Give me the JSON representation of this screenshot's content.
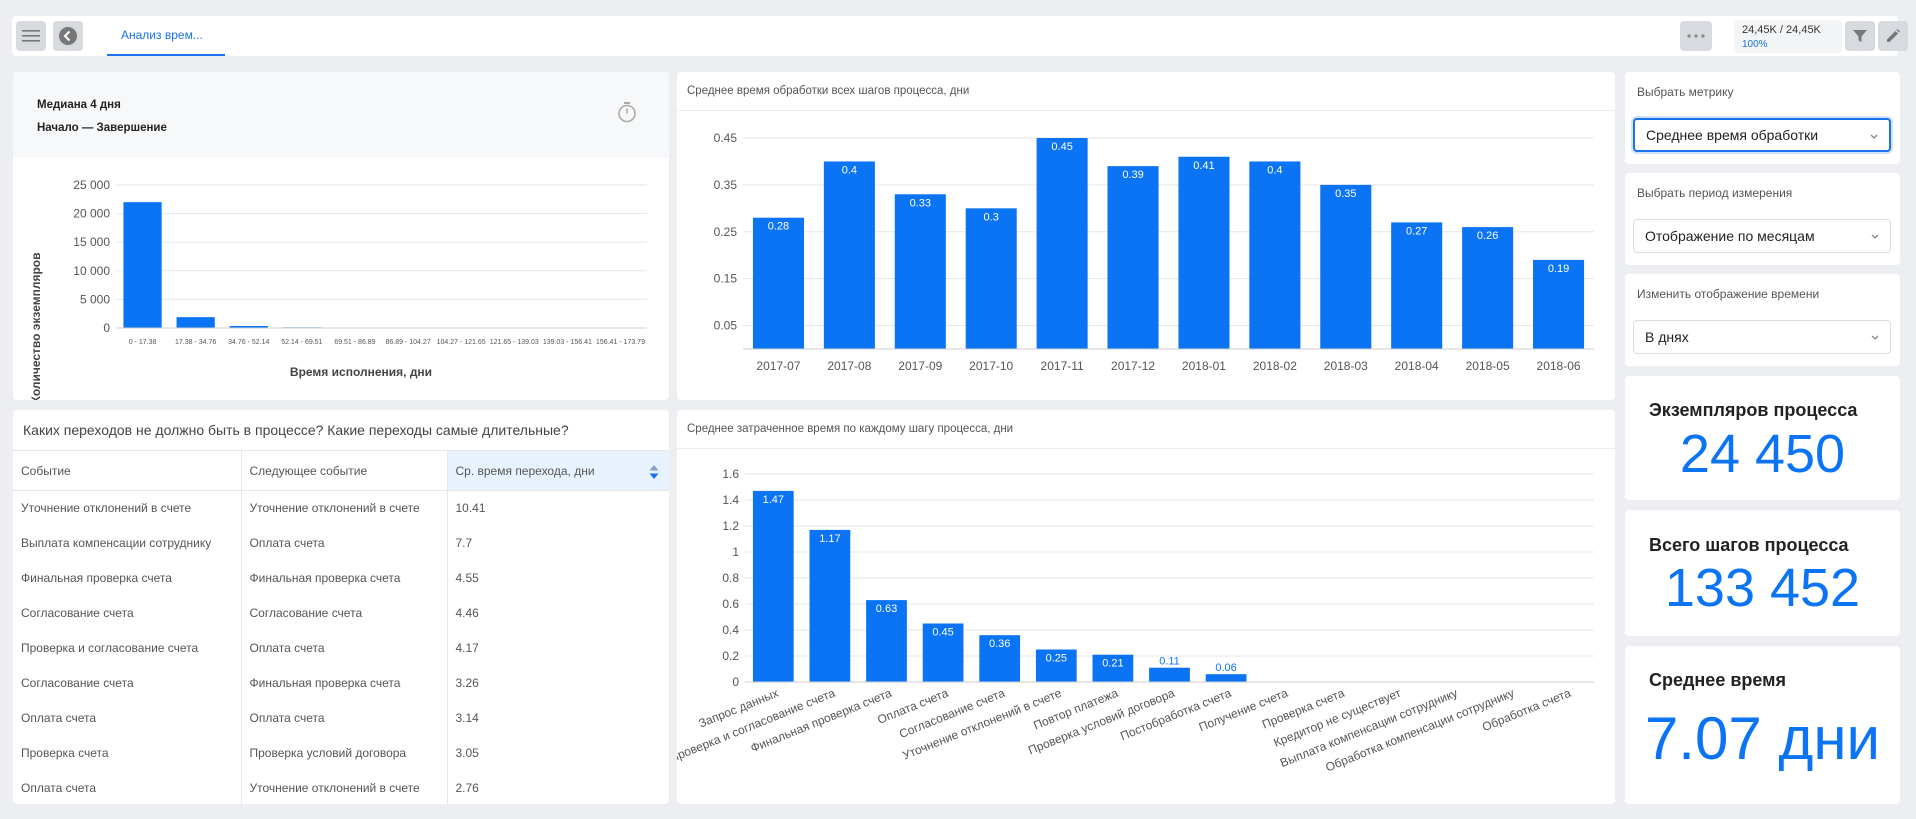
{
  "topbar": {
    "tab_label": "Анализ врем...",
    "capacity_value": "24,45K / 24,45K",
    "capacity_percent": "100%"
  },
  "histogram": {
    "median": "Медиана 4 дня",
    "subtitle": "Начало — Завершение",
    "ylabel": "Количество экземпляров",
    "xlabel": "Время исполнения, дни"
  },
  "monthly_chart_title": "Среднее время обработки всех шагов процесса, дни",
  "steps_chart_title": "Среднее затраченное время по каждому шагу процесса, дни",
  "transitions": {
    "title": "Каких переходов не должно быть в процессе? Какие переходы самые длительные?",
    "headers": [
      "Событие",
      "Следующее событие",
      "Ср. время перехода, дни"
    ],
    "rows": [
      [
        "Уточнение отклонений в счете",
        "Уточнение отклонений в счете",
        "10.41"
      ],
      [
        "Выплата компенсации сотруднику",
        "Оплата счета",
        "7.7"
      ],
      [
        "Финальная проверка счета",
        "Финальная проверка счета",
        "4.55"
      ],
      [
        "Согласование счета",
        "Согласование счета",
        "4.46"
      ],
      [
        "Проверка и согласование счета",
        "Оплата счета",
        "4.17"
      ],
      [
        "Согласование счета",
        "Финальная проверка счета",
        "3.26"
      ],
      [
        "Оплата счета",
        "Оплата счета",
        "3.14"
      ],
      [
        "Проверка счета",
        "Проверка условий договора",
        "3.05"
      ],
      [
        "Оплата счета",
        "Уточнение отклонений в счете",
        "2.76"
      ]
    ]
  },
  "filters": {
    "metric_label": "Выбрать метрику",
    "metric_value": "Среднее время обработки",
    "period_label": "Выбрать период измерения",
    "period_value": "Отображение по месяцам",
    "time_label": "Изменить отображение времени",
    "time_value": "В днях"
  },
  "kpis": {
    "instances_title": "Экземпляров процесса",
    "instances_value": "24 450",
    "steps_title": "Всего шагов процесса",
    "steps_value": "133 452",
    "avg_title": "Среднее время",
    "avg_value": "7.07 дни"
  },
  "icons": [
    "menu-icon",
    "back-icon",
    "more-icon",
    "filter-icon",
    "edit-icon",
    "stopwatch-icon",
    "chevron-down-icon",
    "sort-icon"
  ],
  "colors": {
    "accent": "#0a74f5",
    "background": "#eceef2"
  },
  "chart_data": [
    {
      "type": "bar",
      "ylabel": "Количество экземпляров",
      "xlabel": "Время исполнения, дни",
      "categories": [
        "0 - 17.38",
        "17.38 - 34.76",
        "34.76 - 52.14",
        "52.14 - 69.51",
        "69.51 - 86.89",
        "86.89 - 104.27",
        "104.27 - 121.65",
        "121.65 - 139.03",
        "139.03 - 156.41",
        "156.41 - 173.79"
      ],
      "values": [
        22000,
        1900,
        350,
        120,
        60,
        20,
        10,
        5,
        3,
        2
      ],
      "ylim": [
        0,
        25000
      ],
      "yticks": [
        0,
        5000,
        10000,
        15000,
        20000,
        25000
      ],
      "ytick_labels": [
        "0",
        "5 000",
        "10 000",
        "15 000",
        "20 000",
        "25 000"
      ]
    },
    {
      "type": "bar",
      "title": "Среднее время обработки всех шагов процесса, дни",
      "categories": [
        "2017-07",
        "2017-08",
        "2017-09",
        "2017-10",
        "2017-11",
        "2017-12",
        "2018-01",
        "2018-02",
        "2018-03",
        "2018-04",
        "2018-05",
        "2018-06"
      ],
      "values": [
        0.28,
        0.4,
        0.33,
        0.3,
        0.45,
        0.39,
        0.41,
        0.4,
        0.35,
        0.27,
        0.26,
        0.19
      ],
      "ylim": [
        0,
        0.45
      ],
      "yticks": [
        0.05,
        0.15,
        0.25,
        0.35,
        0.45
      ],
      "ytick_labels": [
        "0.05",
        "0.15",
        "0.25",
        "0.35",
        "0.45"
      ]
    },
    {
      "type": "bar",
      "title": "Среднее затраченное время по каждому шагу процесса, дни",
      "categories": [
        "Запрос данных",
        "Проверка и согласование счета",
        "Финальная проверка счета",
        "Оплата счета",
        "Согласование счета",
        "Уточнение отклонений в счете",
        "Повтор платежа",
        "Проверка условий договора",
        "Постобработка счета",
        "Получение счета",
        "Проверка счета",
        "Кредитор не существует",
        "Выплата компенсации сотруднику",
        "Обработка компенсации сотруднику",
        "Обработка счета"
      ],
      "values": [
        1.47,
        1.17,
        0.63,
        0.45,
        0.36,
        0.25,
        0.21,
        0.11,
        0.06,
        0,
        0,
        0,
        0,
        0,
        0
      ],
      "value_labels": [
        "1.47",
        "1.17",
        "0.63",
        "0.45",
        "0.36",
        "0.25",
        "0.21",
        "0.11",
        "0.06",
        "",
        "",
        "",
        "",
        "",
        ""
      ],
      "ylim": [
        0,
        1.6
      ],
      "yticks": [
        0,
        0.2,
        0.4,
        0.6,
        0.8,
        1,
        1.2,
        1.4,
        1.6
      ],
      "ytick_labels": [
        "0",
        "0.2",
        "0.4",
        "0.6",
        "0.8",
        "1",
        "1.2",
        "1.4",
        "1.6"
      ]
    }
  ]
}
